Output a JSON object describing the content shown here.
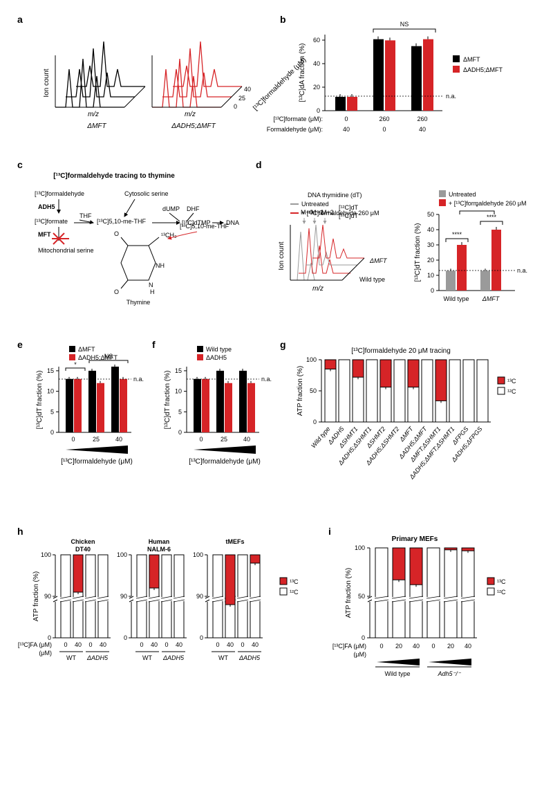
{
  "colors": {
    "black": "#000000",
    "red": "#d62427",
    "grey": "#9a9a9a",
    "white": "#ffffff"
  },
  "labels": {
    "a": "a",
    "b": "b",
    "c": "c",
    "d": "d",
    "e": "e",
    "f": "f",
    "g": "g",
    "h": "h",
    "i": "i"
  },
  "a": {
    "left_label": "ΔMFT",
    "right_label": "ΔADH5;ΔMFT",
    "y_label": "Ion count",
    "x_label": "m/z",
    "z_label": "[¹³C]formaldehyde (μM)",
    "z_ticks": [
      "0",
      "25",
      "40"
    ]
  },
  "b": {
    "y_label": "[¹³C]dA fraction (%)",
    "y_ticks": [
      0,
      20,
      40,
      60
    ],
    "legend": [
      "ΔMFT",
      "ΔADH5;ΔMFT"
    ],
    "ns": "NS",
    "na": "n.a.",
    "groups": [
      {
        "mft": 12,
        "adh5mft": 12
      },
      {
        "mft": 62,
        "adh5mft": 61
      },
      {
        "mft": 56,
        "adh5mft": 62
      }
    ],
    "x_row1_label": "[¹³C]formate (μM):",
    "x_row1": [
      "0",
      "260",
      "260"
    ],
    "x_row2_label": "Formaldehyde (μM):",
    "x_row2": [
      "40",
      "0",
      "40"
    ]
  },
  "c": {
    "title": "[¹³C]formaldehyde tracing to thymine",
    "items": {
      "formaldehyde": "[¹³C]formaldehyde",
      "adh5": "ADH5",
      "formate": "[¹³C]formate",
      "mft": "MFT",
      "mito": "Mitochondrial serine",
      "thf": "THF",
      "methf": "[¹³C]5,10-me-THF",
      "cyto": "Cytosolic serine",
      "dump": "dUMP",
      "dhf": "DHF",
      "dtmp": "[¹³C]dTMP",
      "dna": "DNA",
      "thymine": "Thymine",
      "ch3": "¹³CH₃",
      "methf2": "[¹³C]5,10-me-THF"
    }
  },
  "d": {
    "legend_left": [
      "Untreated",
      "+ [¹³C]formaldehyde 260 μM"
    ],
    "legend_right": [
      "Untreated",
      "+ [¹³C]formaldehyde 260 μM"
    ],
    "dna_label": "DNA thymidine (dT)",
    "peaks": [
      "M+0",
      "M+1",
      "M+2"
    ],
    "peak_labels": [
      "[¹²C]dT",
      "[¹³C]dT"
    ],
    "y_label_left": "Ion count",
    "x_label_left": "m/z",
    "cell_labels": [
      "Wild type",
      "ΔMFT"
    ],
    "y_label_right": "[¹³C]dT fraction (%)",
    "y_ticks": [
      0,
      10,
      20,
      30,
      40,
      50
    ],
    "na": "n.a.",
    "star1": "****",
    "star2": "****",
    "star3": "*",
    "bars": [
      {
        "untreated": 13,
        "treated": 30
      },
      {
        "untreated": 13,
        "treated": 40
      }
    ]
  },
  "e": {
    "legend": [
      "ΔMFT",
      "ΔADH5;ΔMFT"
    ],
    "y_label": "[¹³C]dT fraction (%)",
    "y_ticks": [
      0,
      5,
      10,
      15
    ],
    "x_label": "[¹³C]formaldehyde (μM)",
    "x_ticks": [
      "0",
      "25",
      "40"
    ],
    "na": "n.a.",
    "star": "*",
    "ns": "NS",
    "bars": [
      {
        "a": 13,
        "b": 13
      },
      {
        "a": 15,
        "b": 12
      },
      {
        "a": 16,
        "b": 13
      }
    ]
  },
  "f": {
    "legend": [
      "Wild type",
      "ΔADH5"
    ],
    "y_label": "[¹³C]dT fraction (%)",
    "y_ticks": [
      0,
      5,
      10,
      15
    ],
    "x_label": "[¹³C]formaldehyde (μM)",
    "x_ticks": [
      "0",
      "25",
      "40"
    ],
    "na": "n.a.",
    "bars": [
      {
        "a": 13,
        "b": 13
      },
      {
        "a": 15,
        "b": 12
      },
      {
        "a": 15,
        "b": 12
      }
    ]
  },
  "g": {
    "title": "[¹³C]formaldehyde 20 μM tracing",
    "y_label": "ATP fraction (%)",
    "y_ticks": [
      0,
      50,
      100
    ],
    "legend": [
      "¹³C",
      "¹²C"
    ],
    "categories": [
      "Wild type",
      "ΔADH5",
      "ΔSHMT1",
      "ΔADH5;ΔSHMT1",
      "ΔSHMT2",
      "ΔADH5;ΔSHMT2",
      "ΔMFT",
      "ΔADH5;ΔMFT",
      "ΔMFT;ΔSHMT1",
      "ΔADH5;ΔMFT;ΔSHMT1",
      "ΔFPGS",
      "ΔADH5;ΔFPGS"
    ],
    "c13": [
      15,
      0,
      28,
      0,
      44,
      0,
      44,
      0,
      66,
      0,
      0,
      0
    ]
  },
  "h": {
    "titles": [
      "Chicken DT40",
      "Human NALM-6",
      "tMEFs"
    ],
    "y_label": "ATP fraction (%)",
    "y_ticks_top": [
      90,
      100
    ],
    "y_ticks_bot": [
      0
    ],
    "legend": [
      "¹³C",
      "¹²C"
    ],
    "x_label": "[¹³C]FA (μM)",
    "groups": [
      "WT",
      "ΔADH5"
    ],
    "x_vals": [
      "0",
      "40",
      "0",
      "40"
    ],
    "panels": [
      {
        "vals": [
          0,
          9,
          0,
          0
        ]
      },
      {
        "vals": [
          0,
          8,
          0,
          0
        ]
      },
      {
        "vals": [
          0,
          12,
          0,
          2
        ]
      }
    ]
  },
  "i": {
    "title": "Primary MEFs",
    "y_label": "ATP fraction (%)",
    "y_ticks_top": [
      50,
      100
    ],
    "y_ticks_bot": [
      0
    ],
    "legend": [
      "¹³C",
      "¹²C"
    ],
    "x_label": "[¹³C]FA (μM)",
    "groups": [
      "Wild type",
      "Adh5⁻/⁻"
    ],
    "x_vals": [
      "0",
      "20",
      "40",
      "0",
      "20",
      "40"
    ],
    "vals": [
      0,
      33,
      38,
      0,
      2,
      3
    ]
  }
}
